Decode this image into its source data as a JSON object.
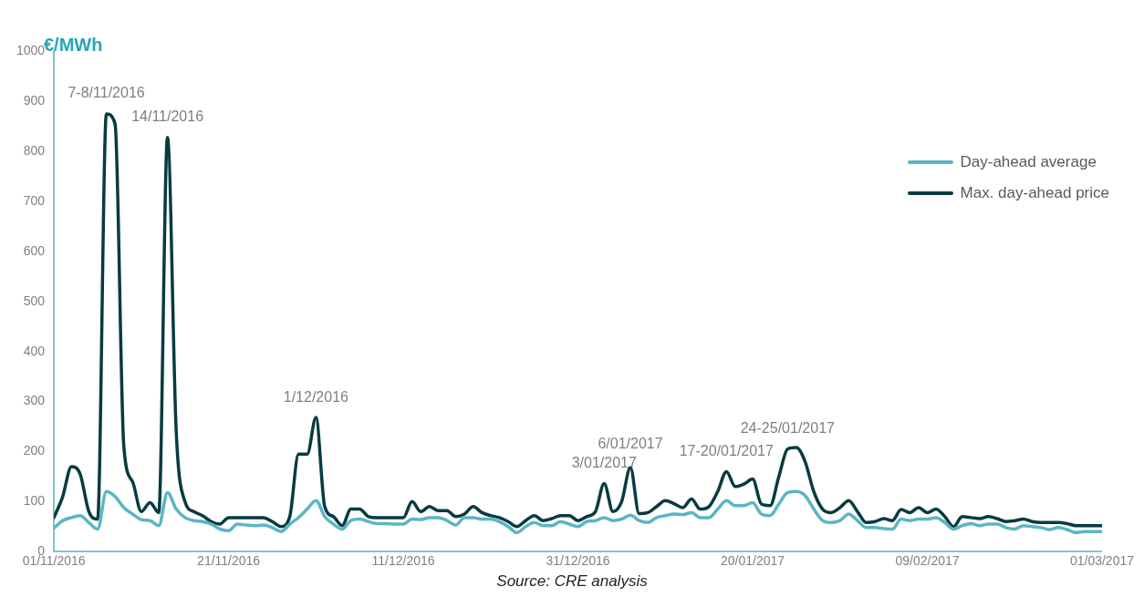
{
  "chart_data": {
    "type": "line",
    "ylabel": "€/MWh",
    "annotations": [
      {
        "text": "7-8/11/2016",
        "x": "2016-11-07",
        "y": 875
      },
      {
        "text": "14/11/2016",
        "x": "2016-11-14",
        "y": 828
      },
      {
        "text": "1/12/2016",
        "x": "2016-12-01",
        "y": 268
      },
      {
        "text": "3/01/2017",
        "x": "2017-01-03",
        "y": 136
      },
      {
        "text": "6/01/2017",
        "x": "2017-01-06",
        "y": 168
      },
      {
        "text": "17-20/01/2017",
        "x": "2017-01-17",
        "y": 160
      },
      {
        "text": "24-25/01/2017",
        "x": "2017-01-24",
        "y": 205
      },
      "Source: CRE analysis"
    ],
    "x": [
      "2016-11-01",
      "2016-11-02",
      "2016-11-03",
      "2016-11-04",
      "2016-11-05",
      "2016-11-06",
      "2016-11-07",
      "2016-11-08",
      "2016-11-09",
      "2016-11-10",
      "2016-11-11",
      "2016-11-12",
      "2016-11-13",
      "2016-11-14",
      "2016-11-15",
      "2016-11-16",
      "2016-11-17",
      "2016-11-18",
      "2016-11-19",
      "2016-11-20",
      "2016-11-21",
      "2016-11-22",
      "2016-11-23",
      "2016-11-24",
      "2016-11-25",
      "2016-11-26",
      "2016-11-27",
      "2016-11-28",
      "2016-11-29",
      "2016-11-30",
      "2016-12-01",
      "2016-12-02",
      "2016-12-03",
      "2016-12-04",
      "2016-12-05",
      "2016-12-06",
      "2016-12-07",
      "2016-12-08",
      "2016-12-09",
      "2016-12-10",
      "2016-12-11",
      "2016-12-12",
      "2016-12-13",
      "2016-12-14",
      "2016-12-15",
      "2016-12-16",
      "2016-12-17",
      "2016-12-18",
      "2016-12-19",
      "2016-12-20",
      "2016-12-21",
      "2016-12-22",
      "2016-12-23",
      "2016-12-24",
      "2016-12-25",
      "2016-12-26",
      "2016-12-27",
      "2016-12-28",
      "2016-12-29",
      "2016-12-30",
      "2016-12-31",
      "2017-01-01",
      "2017-01-02",
      "2017-01-03",
      "2017-01-04",
      "2017-01-05",
      "2017-01-06",
      "2017-01-07",
      "2017-01-08",
      "2017-01-09",
      "2017-01-10",
      "2017-01-11",
      "2017-01-12",
      "2017-01-13",
      "2017-01-14",
      "2017-01-15",
      "2017-01-16",
      "2017-01-17",
      "2017-01-18",
      "2017-01-19",
      "2017-01-20",
      "2017-01-21",
      "2017-01-22",
      "2017-01-23",
      "2017-01-24",
      "2017-01-25",
      "2017-01-26",
      "2017-01-27",
      "2017-01-28",
      "2017-01-29",
      "2017-01-30",
      "2017-01-31",
      "2017-02-01",
      "2017-02-02",
      "2017-02-03",
      "2017-02-04",
      "2017-02-05",
      "2017-02-06",
      "2017-02-07",
      "2017-02-08",
      "2017-02-09",
      "2017-02-10",
      "2017-02-11",
      "2017-02-12",
      "2017-02-13",
      "2017-02-14",
      "2017-02-15",
      "2017-02-16",
      "2017-02-17",
      "2017-02-18",
      "2017-02-19",
      "2017-02-20",
      "2017-02-21",
      "2017-02-22",
      "2017-02-23",
      "2017-02-24",
      "2017-02-25",
      "2017-02-26",
      "2017-02-27",
      "2017-02-28",
      "2017-03-01"
    ],
    "series": [
      {
        "name": "Day-ahead average",
        "color": "#5bb5c4",
        "values": [
          47,
          62,
          68,
          72,
          58,
          45,
          120,
          110,
          88,
          75,
          64,
          62,
          52,
          118,
          85,
          68,
          62,
          60,
          55,
          45,
          42,
          55,
          53,
          52,
          53,
          48,
          40,
          55,
          68,
          85,
          102,
          70,
          55,
          45,
          62,
          65,
          60,
          56,
          56,
          55,
          55,
          65,
          64,
          68,
          68,
          62,
          53,
          68,
          68,
          65,
          65,
          60,
          50,
          38,
          50,
          58,
          52,
          52,
          60,
          55,
          50,
          60,
          62,
          68,
          62,
          65,
          73,
          62,
          58,
          68,
          72,
          75,
          74,
          78,
          68,
          68,
          85,
          102,
          92,
          92,
          98,
          75,
          72,
          95,
          118,
          120,
          112,
          85,
          62,
          58,
          62,
          75,
          62,
          48,
          48,
          46,
          45,
          65,
          62,
          65,
          65,
          68,
          58,
          45,
          52,
          56,
          52,
          55,
          55,
          48,
          45,
          52,
          50,
          48,
          44,
          48,
          44,
          38,
          40,
          40,
          40
        ]
      },
      {
        "name": "Max. day-ahead price",
        "color": "#073b3f",
        "values": [
          68,
          110,
          170,
          155,
          80,
          65,
          875,
          855,
          210,
          140,
          80,
          98,
          78,
          828,
          240,
          100,
          80,
          72,
          60,
          55,
          68,
          68,
          68,
          68,
          68,
          60,
          50,
          70,
          195,
          195,
          268,
          90,
          70,
          52,
          85,
          85,
          70,
          68,
          68,
          68,
          68,
          100,
          80,
          90,
          82,
          82,
          70,
          75,
          90,
          78,
          72,
          68,
          60,
          50,
          62,
          72,
          62,
          66,
          72,
          72,
          62,
          70,
          80,
          136,
          80,
          100,
          168,
          76,
          78,
          90,
          102,
          96,
          88,
          105,
          85,
          90,
          120,
          160,
          130,
          135,
          145,
          95,
          92,
          150,
          205,
          208,
          180,
          120,
          85,
          78,
          88,
          102,
          80,
          58,
          60,
          66,
          62,
          84,
          78,
          88,
          78,
          85,
          70,
          50,
          70,
          68,
          66,
          70,
          66,
          60,
          62,
          65,
          60,
          58,
          58,
          58,
          56,
          52,
          52,
          52,
          52
        ]
      }
    ],
    "xlim": [
      "2016-11-01",
      "2017-03-01"
    ],
    "xticks": [
      {
        "value": "2016-11-01",
        "label": "01/11/2016"
      },
      {
        "value": "2016-11-21",
        "label": "21/11/2016"
      },
      {
        "value": "2016-12-11",
        "label": "11/12/2016"
      },
      {
        "value": "2016-12-31",
        "label": "31/12/2016"
      },
      {
        "value": "2017-01-20",
        "label": "20/01/2017"
      },
      {
        "value": "2017-02-09",
        "label": "09/02/2017"
      },
      {
        "value": "2017-03-01",
        "label": "01/03/2017"
      }
    ],
    "ylim": [
      0,
      1000
    ],
    "yticks": [
      0,
      100,
      200,
      300,
      400,
      500,
      600,
      700,
      800,
      900,
      1000
    ],
    "grid": false,
    "legend": "top right",
    "marker": "none",
    "line_style": "solid"
  }
}
